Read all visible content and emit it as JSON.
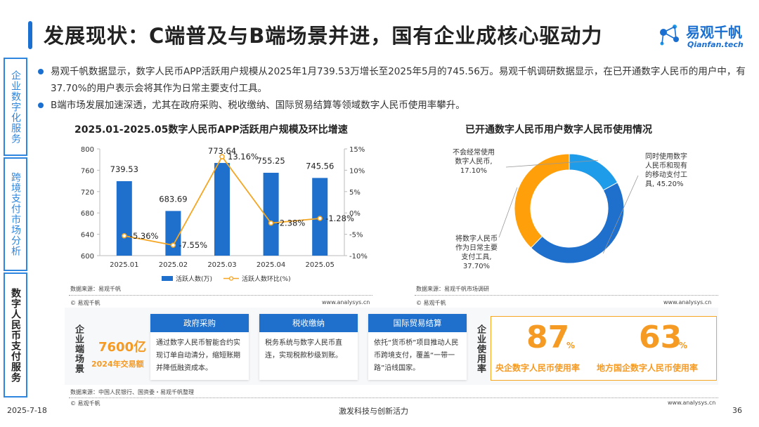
{
  "header": {
    "title": "发展现状：C端普及与B端场景并进，国有企业成核心驱动力",
    "logo_cn": "易观千帆",
    "logo_en": "Qianfan.tech"
  },
  "side_tabs": [
    {
      "label": "企业数字化服务",
      "active": false
    },
    {
      "label": "跨境支付市场分析",
      "active": false
    },
    {
      "label": "数字人民币支付服务",
      "active": true
    }
  ],
  "bullets": [
    "易观千帆数据显示，数字人民币APP活跃用户规模从2025年1月739.53万增长至2025年5月的745.56万。易观千帆调研数据显示，在已开通数字人民币的用户中，有37.70%的用户表示会将其作为日常主要支付工具。",
    "B端市场发展加速深透，尤其在政府采购、税收缴纳、国际贸易结算等领域数字人民币使用率攀升。"
  ],
  "left_chart": {
    "title": "2025.01-2025.05数字人民币APP活跃用户规模及环比增速",
    "source": "数据来源：易观千帆",
    "copyright": "© 易观千帆",
    "website": "www.analysys.cn",
    "legend_bar": "活跃人数(万)",
    "legend_line": "活跃人数环比(%)"
  },
  "right_chart": {
    "title": "已开通数字人民币用户数字人民币使用情况",
    "source": "数据来源：易观千帆市场调研",
    "copyright": "© 易观千帆",
    "website": "www.analysys.cn",
    "slice_labels": [
      [
        "同时使用数字",
        "人民币和现有",
        "的移动支付工",
        "具, 45.20%"
      ],
      [
        "将数字人民币",
        "作为日常主要",
        "支付工具,",
        "37.70%"
      ],
      [
        "不会经常使用",
        "数字人民币,",
        "17.10%"
      ]
    ]
  },
  "bottom": {
    "b_label": "企业端场景",
    "amount": "7600亿",
    "amount_caption": "2024年交易额",
    "cards": [
      {
        "head": "政府采购",
        "body": "通过数字人民币智能合约实现订单自动清分，缩短账期并降低融资成本。"
      },
      {
        "head": "税收缴纳",
        "body": "税务系统与数字人民币直连，实现税款秒级到账。"
      },
      {
        "head": "国际贸易结算",
        "body": "依托“货币桥”项目推动人民币跨境支付，覆盖“一带一路”沿线国家。"
      }
    ],
    "rate_label": "企业使用率",
    "rates": [
      {
        "value": "87",
        "unit": "%",
        "caption": "央企数字人民币使用率"
      },
      {
        "value": "63",
        "unit": "%",
        "caption": "地方国企数字人民币使用率"
      }
    ],
    "source": "数据来源：中国人民银行、国资委・易观千帆整理",
    "copyright": "© 易观千帆",
    "website": "www.analysys.cn"
  },
  "footer": {
    "date": "2025-7-18",
    "center": "激发科技与创新活力",
    "page": "36"
  },
  "colors": {
    "brand_blue": "#1a6fd1",
    "bar_blue": "#1f6fcc",
    "line_orange": "#f5a623",
    "donut_blue": "#1f6fcc",
    "donut_orange": "#ff9f0a",
    "donut_lightblue": "#1e9be9",
    "accent_orange": "#f59a23"
  },
  "chart_data": [
    {
      "type": "bar",
      "title": "2025.01-2025.05数字人民币APP活跃用户规模及环比增速",
      "categories": [
        "2025.01",
        "2025.02",
        "2025.03",
        "2025.04",
        "2025.05"
      ],
      "series": [
        {
          "name": "活跃人数(万)",
          "type": "bar",
          "axis": "left",
          "values": [
            739.53,
            683.69,
            773.64,
            755.25,
            745.56
          ],
          "labels": [
            "739.53",
            "683.69",
            "773.64",
            "755.25",
            "745.56"
          ]
        },
        {
          "name": "活跃人数环比(%)",
          "type": "line",
          "axis": "right",
          "values": [
            -5.36,
            -7.55,
            13.16,
            -2.38,
            -1.28
          ],
          "labels": [
            "-5.36%",
            "-7.55%",
            "13.16%",
            "-2.38%",
            "-1.28%"
          ]
        }
      ],
      "ylim": [
        600,
        800
      ],
      "yticks": [
        "600",
        "640",
        "680",
        "720",
        "760",
        "800"
      ],
      "y2lim": [
        -10,
        15
      ],
      "y2ticks": [
        "-10%",
        "-5%",
        "0%",
        "5%",
        "10%",
        "15%"
      ],
      "legend": "bottom"
    },
    {
      "type": "pie",
      "title": "已开通数字人民币用户数字人民币使用情况",
      "donut": true,
      "slices": [
        {
          "name": "同时使用数字人民币和现有的移动支付工具",
          "value": 45.2
        },
        {
          "name": "将数字人民币作为日常主要支付工具",
          "value": 37.7
        },
        {
          "name": "不会经常使用数字人民币",
          "value": 17.1
        }
      ]
    }
  ]
}
